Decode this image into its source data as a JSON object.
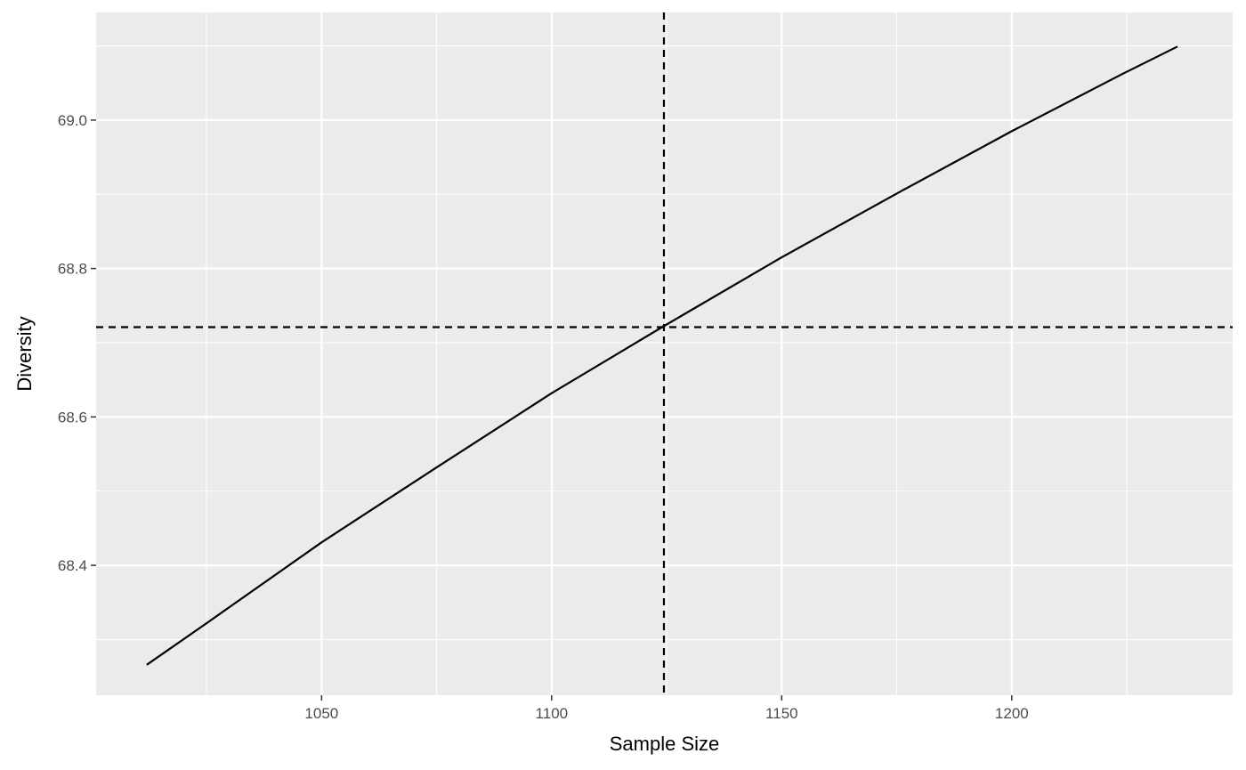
{
  "chart_data": {
    "type": "line",
    "title": "",
    "xlabel": "Sample Size",
    "ylabel": "Diversity",
    "xlim": [
      1001,
      1248
    ],
    "ylim": [
      68.225,
      69.145
    ],
    "x_ticks": [
      1050,
      1100,
      1150,
      1200
    ],
    "x_tick_labels": [
      "1050",
      "1100",
      "1150",
      "1200"
    ],
    "y_ticks": [
      68.4,
      68.6,
      68.8,
      69.0
    ],
    "y_tick_labels": [
      "68.4",
      "68.6",
      "68.8",
      "69.0"
    ],
    "grid": true,
    "legend": "none",
    "series": [
      {
        "x": [
          1012,
          1025,
          1050,
          1075,
          1100,
          1124,
          1150,
          1175,
          1200,
          1224,
          1236
        ],
        "y": [
          68.266,
          68.322,
          68.431,
          68.532,
          68.632,
          68.721,
          68.815,
          68.901,
          68.985,
          69.062,
          69.099
        ]
      }
    ],
    "reference_lines": [
      {
        "orientation": "vertical",
        "value": 1124.4,
        "style": "dashed"
      },
      {
        "orientation": "horizontal",
        "value": 68.721,
        "style": "dashed"
      }
    ],
    "colors": {
      "panel_background": "#ebebeb",
      "grid_major": "#ffffff",
      "line": "#000000",
      "tick_label": "#4d4d4d"
    }
  }
}
